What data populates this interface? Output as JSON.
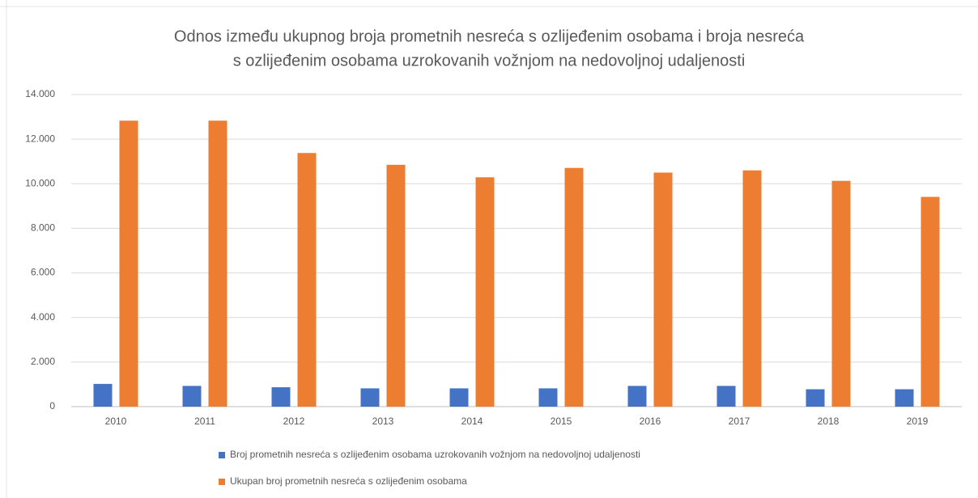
{
  "chart_data": {
    "type": "bar",
    "title": [
      "Odnos između ukupnog broja prometnih nesreća s ozlijeđenim osobama i broja nesreća",
      "s ozlijeđenim osobama uzrokovanih vožnjom na nedovoljnoj udaljenosti"
    ],
    "categories": [
      "2010",
      "2011",
      "2012",
      "2013",
      "2014",
      "2015",
      "2016",
      "2017",
      "2018",
      "2019"
    ],
    "series": [
      {
        "name": "Broj prometnih nesreća s ozlijeđenim osobama uzrokovanih vožnjom na nedovoljnoj udaljenosti",
        "color": "#4472c4",
        "values": [
          1020,
          930,
          870,
          820,
          820,
          820,
          930,
          930,
          780,
          780
        ]
      },
      {
        "name": "Ukupan broj prometnih nesreća s ozlijeđenim osobama",
        "color": "#ed7d31",
        "values": [
          12830,
          12830,
          11380,
          10850,
          10290,
          10710,
          10500,
          10600,
          10130,
          9410
        ]
      }
    ],
    "ylim": [
      0,
      14000
    ],
    "yticks": [
      0,
      {
        "value": 2000,
        "label": "2.000"
      },
      {
        "value": 4000,
        "label": "4.000"
      },
      {
        "value": 6000,
        "label": "6.000"
      },
      {
        "value": 8000,
        "label": "8.000"
      },
      {
        "value": 10000,
        "label": "10.000"
      },
      {
        "value": 12000,
        "label": "12.000"
      },
      {
        "value": 14000,
        "label": "14.000"
      }
    ],
    "grid": true,
    "legend": "bottom"
  }
}
